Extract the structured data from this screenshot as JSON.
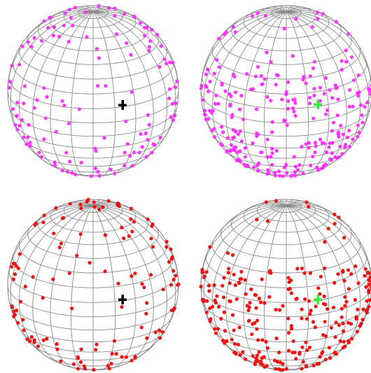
{
  "panels": [
    {
      "point_color": "#ff33ff",
      "cross_color": "#000000",
      "distribution": "sparse"
    },
    {
      "point_color": "#ff33ff",
      "cross_color": "#33ee33",
      "distribution": "dense"
    },
    {
      "point_color": "#ee1111",
      "cross_color": "#000000",
      "distribution": "sparse"
    },
    {
      "point_color": "#ee1111",
      "cross_color": "#33ee33",
      "distribution": "dense"
    }
  ]
}
